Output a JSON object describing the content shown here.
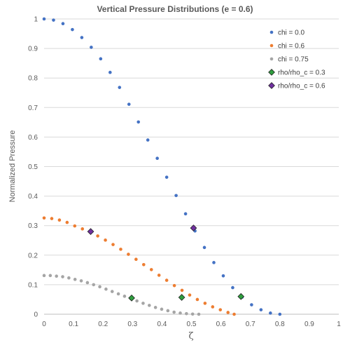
{
  "chart_data": {
    "type": "scatter",
    "title": "Vertical Pressure Distributions (e = 0.6)",
    "xlabel": "ζ",
    "ylabel": "Normalized Pressure",
    "xlim": [
      0,
      1
    ],
    "ylim": [
      0,
      1
    ],
    "xticks": [
      "0",
      "0.1",
      "0.2",
      "0.3",
      "0.4",
      "0.5",
      "0.6",
      "0.7",
      "0.8",
      "0.9",
      "1"
    ],
    "yticks": [
      "0",
      "0.1",
      "0.2",
      "0.3",
      "0.4",
      "0.5",
      "0.6",
      "0.7",
      "0.8",
      "0.9",
      "1"
    ],
    "grid": "horizontal",
    "legend_position": "top-right",
    "series": [
      {
        "name": "chi =  0.0",
        "color": "#4472C4",
        "marker": "circle",
        "x": [
          0.0,
          0.032,
          0.064,
          0.096,
          0.128,
          0.16,
          0.192,
          0.224,
          0.256,
          0.288,
          0.32,
          0.352,
          0.384,
          0.416,
          0.448,
          0.48,
          0.512,
          0.544,
          0.576,
          0.608,
          0.64,
          0.672,
          0.704,
          0.736,
          0.768,
          0.8
        ],
        "y": [
          1.0,
          0.996,
          0.984,
          0.964,
          0.937,
          0.904,
          0.865,
          0.819,
          0.768,
          0.711,
          0.651,
          0.59,
          0.528,
          0.464,
          0.402,
          0.34,
          0.282,
          0.226,
          0.175,
          0.13,
          0.09,
          0.058,
          0.032,
          0.015,
          0.004,
          0.0
        ]
      },
      {
        "name": "chi = 0.6",
        "color": "#ED7D31",
        "marker": "circle",
        "x": [
          0.0,
          0.026,
          0.052,
          0.078,
          0.104,
          0.13,
          0.156,
          0.182,
          0.208,
          0.234,
          0.26,
          0.286,
          0.312,
          0.338,
          0.364,
          0.39,
          0.416,
          0.442,
          0.468,
          0.494,
          0.52,
          0.546,
          0.572,
          0.598,
          0.624,
          0.645
        ],
        "y": [
          0.326,
          0.324,
          0.319,
          0.311,
          0.299,
          0.289,
          0.278,
          0.265,
          0.251,
          0.236,
          0.22,
          0.203,
          0.186,
          0.168,
          0.151,
          0.132,
          0.115,
          0.097,
          0.081,
          0.065,
          0.05,
          0.037,
          0.025,
          0.015,
          0.006,
          0.0
        ]
      },
      {
        "name": "chi = 0.75",
        "color": "#A5A5A5",
        "marker": "circle",
        "x": [
          0.0,
          0.021,
          0.042,
          0.063,
          0.084,
          0.105,
          0.126,
          0.147,
          0.168,
          0.189,
          0.21,
          0.231,
          0.252,
          0.273,
          0.294,
          0.315,
          0.336,
          0.357,
          0.378,
          0.399,
          0.42,
          0.441,
          0.462,
          0.483,
          0.504,
          0.525
        ],
        "y": [
          0.131,
          0.131,
          0.129,
          0.127,
          0.123,
          0.118,
          0.113,
          0.107,
          0.1,
          0.093,
          0.085,
          0.077,
          0.069,
          0.061,
          0.053,
          0.045,
          0.037,
          0.03,
          0.023,
          0.017,
          0.012,
          0.007,
          0.004,
          0.002,
          0.0005,
          0.0
        ]
      },
      {
        "name": "rho/rho_c = 0.3",
        "color": "#2E9E3E",
        "marker": "diamond",
        "x": [
          0.297,
          0.467,
          0.668
        ],
        "y": [
          0.055,
          0.057,
          0.06
        ]
      },
      {
        "name": "rho/rho_c = 0.6",
        "color": "#7030A0",
        "marker": "diamond",
        "x": [
          0.158,
          0.507
        ],
        "y": [
          0.28,
          0.292
        ]
      }
    ]
  }
}
